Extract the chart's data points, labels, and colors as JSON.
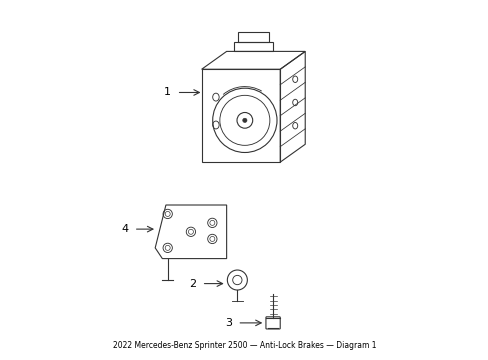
{
  "title": "2022 Mercedes-Benz Sprinter 2500\nAnti-Lock Brakes\nDiagram 1",
  "bg_color": "#ffffff",
  "line_color": "#333333",
  "label_color": "#000000",
  "fig_width": 4.89,
  "fig_height": 3.6,
  "dpi": 100
}
